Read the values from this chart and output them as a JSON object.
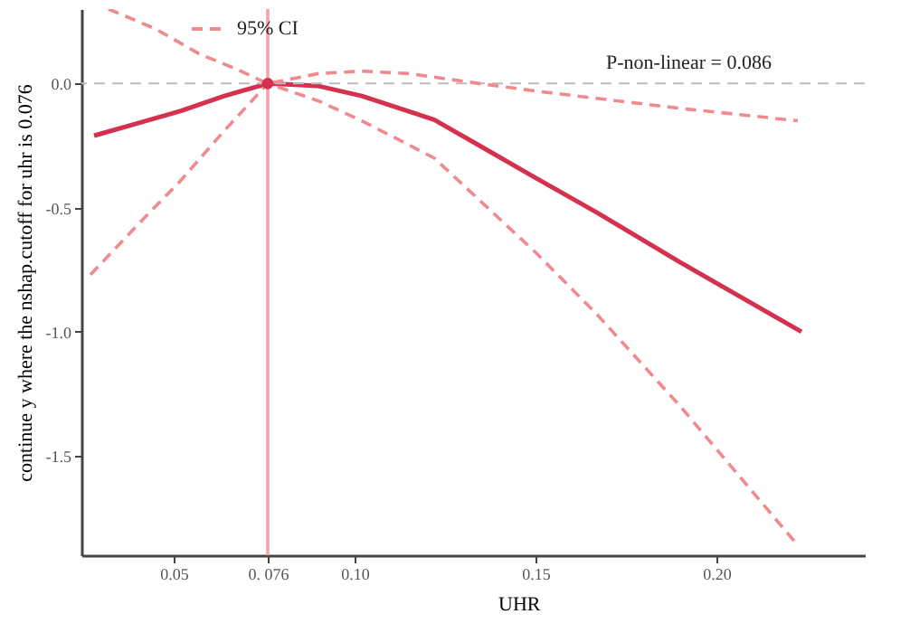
{
  "chart_data": {
    "type": "line",
    "xlabel": "UHR",
    "ylabel": "continue y where the nshap.cutoff for uhr is 0.076",
    "xlim": [
      0.0245,
      0.241
    ],
    "ylim": [
      -1.9,
      0.3
    ],
    "xticks": [
      0.05,
      {
        "value": 0.076,
        "label": "0. 076"
      },
      {
        "value": 0.1,
        "label": "0.10"
      },
      0.15,
      {
        "value": 0.2,
        "label": "0.20"
      }
    ],
    "yticks": [
      {
        "value": 0,
        "label": "0.0"
      },
      -0.5,
      {
        "value": -1,
        "label": "-1.0"
      },
      -1.5
    ],
    "grid": false,
    "legend": "top left",
    "annotations": [
      "P-non-linear = 0.086"
    ],
    "ref_lines": [
      {
        "axis": "x",
        "value": 0.076,
        "color": "#f4a3a8",
        "line_style": "solid"
      },
      {
        "axis": "y",
        "value": 0,
        "color": "#bbbbbb",
        "line_style": "dashed"
      }
    ],
    "series": [
      {
        "color": "#d6304f",
        "line_style": "solid",
        "x": [
          0.028,
          0.04,
          0.052,
          0.064,
          0.076,
          0.09,
          0.102,
          0.122,
          0.1345,
          0.15,
          0.167,
          0.19,
          0.2235
        ],
        "values": [
          -0.21,
          -0.16,
          -0.11,
          -0.05,
          0,
          -0.01,
          -0.05,
          -0.146,
          -0.25,
          -0.38,
          -0.52,
          -0.72,
          -1.0
        ]
      },
      {
        "name": "95% CI",
        "color": "#f08a8f",
        "line_style": "dashed",
        "x": [
          0.032,
          0.045,
          0.057,
          0.067,
          0.076,
          0.09,
          0.102,
          0.115,
          0.1345,
          0.15,
          0.167,
          0.19,
          0.2225
        ],
        "values": [
          0.3,
          0.22,
          0.12,
          0.06,
          0,
          0.04,
          0.05,
          0.04,
          0,
          -0.03,
          -0.06,
          -0.1,
          -0.15
        ]
      },
      {
        "color": "#f08a8f",
        "line_style": "dashed",
        "x": [
          0.027,
          0.04,
          0.052,
          0.064,
          0.076,
          0.09,
          0.102,
          0.122,
          0.15,
          0.167,
          0.19,
          0.2225
        ],
        "values": [
          -0.77,
          -0.57,
          -0.39,
          -0.19,
          0,
          -0.07,
          -0.15,
          -0.3,
          -0.68,
          -0.93,
          -1.3,
          -1.86
        ]
      },
      {
        "type": "scatter",
        "marker": "circle",
        "color": "#d6304f",
        "x": [
          0.076
        ],
        "values": [
          0
        ]
      }
    ]
  }
}
